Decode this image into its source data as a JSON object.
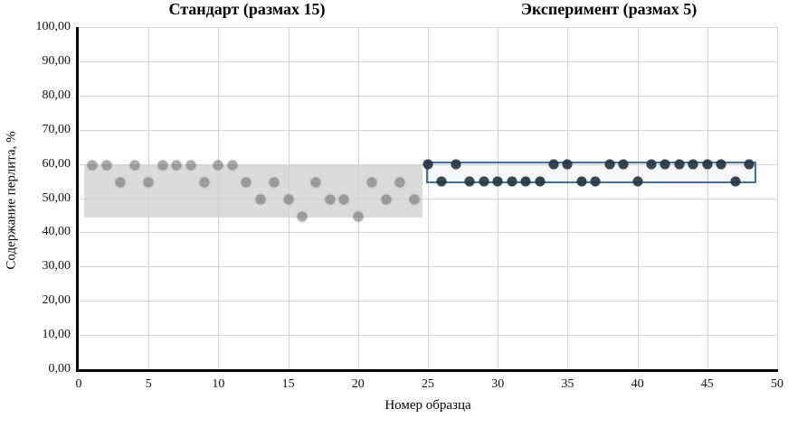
{
  "chart_data": {
    "type": "scatter",
    "titles": {
      "left": "Стандарт (размах 15)",
      "right": "Эксперимент (размах 5)"
    },
    "xlabel": "Номер образца",
    "ylabel": "Содержание перлита, %",
    "xlim": [
      0,
      50
    ],
    "ylim": [
      0,
      100
    ],
    "grid": true,
    "x_ticks": [
      {
        "value": 0,
        "label": "0"
      },
      {
        "value": 5,
        "label": "5"
      },
      {
        "value": 10,
        "label": "10"
      },
      {
        "value": 15,
        "label": "15"
      },
      {
        "value": 20,
        "label": "20"
      },
      {
        "value": 25,
        "label": "25"
      },
      {
        "value": 30,
        "label": "30"
      },
      {
        "value": 35,
        "label": "35"
      },
      {
        "value": 40,
        "label": "40"
      },
      {
        "value": 45,
        "label": "45"
      },
      {
        "value": 50,
        "label": "50"
      }
    ],
    "y_ticks": [
      {
        "value": 0,
        "label": "0,00"
      },
      {
        "value": 10,
        "label": "10,00"
      },
      {
        "value": 20,
        "label": "20,00"
      },
      {
        "value": 30,
        "label": "30,00"
      },
      {
        "value": 40,
        "label": "40,00"
      },
      {
        "value": 50,
        "label": "50,00"
      },
      {
        "value": 60,
        "label": "60,00"
      },
      {
        "value": 70,
        "label": "70,00"
      },
      {
        "value": 80,
        "label": "80,00"
      },
      {
        "value": 90,
        "label": "90,00"
      },
      {
        "value": 100,
        "label": "100,00"
      }
    ],
    "series": [
      {
        "name": "Стандарт",
        "marker_color": "#8c8c8c",
        "points": [
          [
            1,
            59.5
          ],
          [
            2,
            59.5
          ],
          [
            3,
            54.5
          ],
          [
            4,
            59.5
          ],
          [
            5,
            54.5
          ],
          [
            6,
            59.5
          ],
          [
            7,
            59.5
          ],
          [
            8,
            59.5
          ],
          [
            9,
            54.5
          ],
          [
            10,
            59.5
          ],
          [
            11,
            59.5
          ],
          [
            12,
            54.5
          ],
          [
            13,
            49.5
          ],
          [
            14,
            54.5
          ],
          [
            15,
            49.5
          ],
          [
            16,
            44.5
          ],
          [
            17,
            54.5
          ],
          [
            18,
            49.5
          ],
          [
            19,
            49.5
          ],
          [
            20,
            44.5
          ],
          [
            21,
            54.5
          ],
          [
            22,
            49.5
          ],
          [
            23,
            54.5
          ],
          [
            24,
            49.5
          ]
        ]
      },
      {
        "name": "Эксперимент",
        "marker_color": "#2b3744",
        "points": [
          [
            25,
            60
          ],
          [
            26,
            55
          ],
          [
            27,
            60
          ],
          [
            28,
            55
          ],
          [
            29,
            55
          ],
          [
            30,
            55
          ],
          [
            31,
            55
          ],
          [
            32,
            55
          ],
          [
            33,
            55
          ],
          [
            34,
            60
          ],
          [
            35,
            60
          ],
          [
            36,
            55
          ],
          [
            37,
            55
          ],
          [
            38,
            60
          ],
          [
            39,
            60
          ],
          [
            40,
            55
          ],
          [
            41,
            60
          ],
          [
            42,
            60
          ],
          [
            43,
            60
          ],
          [
            44,
            60
          ],
          [
            45,
            60
          ],
          [
            46,
            60
          ],
          [
            47,
            55
          ],
          [
            48,
            60
          ]
        ]
      }
    ],
    "zones": [
      {
        "name": "standard-range-band",
        "x0": 0.4,
        "x1": 24.6,
        "y0": 44.4,
        "y1": 60.0,
        "fill": "#dbdbdb"
      },
      {
        "name": "experiment-range-box",
        "x0": 24.9,
        "x1": 48.5,
        "y0": 54.3,
        "y1": 60.7,
        "stroke": "#41719c"
      }
    ],
    "colors": {
      "gridline": "#d2d2d2",
      "axis": "#000000",
      "standard_band_fill": "#dbdbdb",
      "experiment_box_stroke": "#41719c",
      "standard_marker": "#8c8c8c",
      "experiment_marker": "#2b3744"
    }
  }
}
